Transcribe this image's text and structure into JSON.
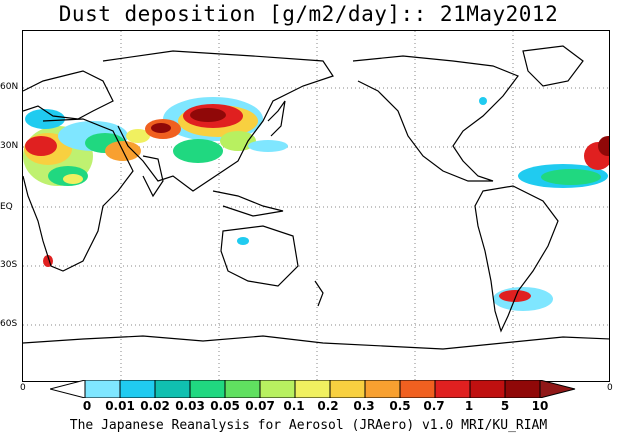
{
  "title": "Dust deposition [g/m2/day]:: 21May2012",
  "latitude_labels": [
    "60N",
    "30N",
    "EQ",
    "30S",
    "60S"
  ],
  "edge_labels": {
    "left": "0",
    "right": "0"
  },
  "colorbar": {
    "labels": [
      "0",
      "0.01",
      "0.02",
      "0.03",
      "0.05",
      "0.07",
      "0.1",
      "0.2",
      "0.3",
      "0.5",
      "0.7",
      "1",
      "5",
      "10"
    ],
    "colors": [
      "#ffffff",
      "#7fe6ff",
      "#20cbf0",
      "#10c0b0",
      "#20d880",
      "#60e060",
      "#b8f060",
      "#f0f060",
      "#f8d040",
      "#f8a030",
      "#f06020",
      "#e02020",
      "#c01010",
      "#900808",
      "#901818"
    ]
  },
  "footer": "The Japanese Reanalysis for Aerosol (JRAero) v1.0 MRI/KU_RIAM"
}
